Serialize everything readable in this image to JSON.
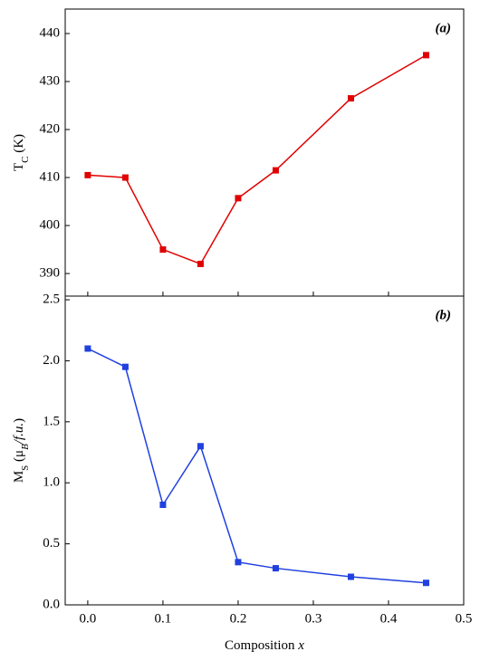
{
  "chart_data": [
    {
      "type": "line",
      "annotation": "(a)",
      "ylabel_parts": [
        "T",
        "C",
        " (K)"
      ],
      "x": [
        0,
        0.05,
        0.1,
        0.15,
        0.2,
        0.25,
        0.35,
        0.45
      ],
      "series": [
        {
          "color": "#e00000",
          "values": [
            410.5,
            410,
            395,
            392,
            405.7,
            411.5,
            426.5,
            435.5
          ]
        }
      ],
      "xlim": [
        -0.03,
        0.5
      ],
      "xticks": [
        0,
        0.1,
        0.2,
        0.3,
        0.4,
        0.5
      ],
      "ylim": [
        385.3,
        445.1
      ],
      "yticks": [
        390,
        400,
        410,
        420,
        430,
        440
      ]
    },
    {
      "type": "line",
      "annotation": "(b)",
      "ylabel_parts": [
        "M",
        "S",
        " (μ",
        "B",
        "/f.u.",
        ")"
      ],
      "xlabel_parts": [
        "Composition ",
        "x"
      ],
      "x": [
        0,
        0.05,
        0.1,
        0.15,
        0.2,
        0.25,
        0.35,
        0.45
      ],
      "series": [
        {
          "color": "#2040e0",
          "values": [
            2.1,
            1.95,
            0.82,
            1.3,
            0.35,
            0.3,
            0.23,
            0.18
          ]
        }
      ],
      "xlim": [
        -0.03,
        0.5
      ],
      "xticks": [
        {
          "value": 0,
          "label": "0.0"
        },
        {
          "value": 0.1,
          "label": "0.1"
        },
        {
          "value": 0.2,
          "label": "0.2"
        },
        {
          "value": 0.3,
          "label": "0.3"
        },
        {
          "value": 0.4,
          "label": "0.4"
        },
        {
          "value": 0.5,
          "label": "0.5"
        }
      ],
      "ylim": [
        0,
        2.53
      ],
      "yticks": [
        {
          "value": 0,
          "label": "0.0"
        },
        {
          "value": 0.5,
          "label": "0.5"
        },
        {
          "value": 1,
          "label": "1.0"
        },
        {
          "value": 1.5,
          "label": "1.5"
        },
        {
          "value": 2,
          "label": "2.0"
        },
        {
          "value": 2.5,
          "label": "2.5"
        }
      ]
    }
  ]
}
